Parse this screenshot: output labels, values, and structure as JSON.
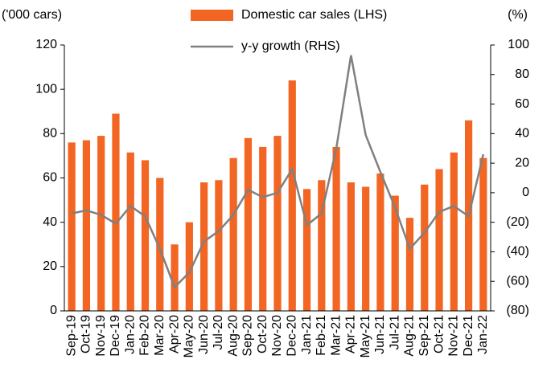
{
  "chart_data": {
    "type": "bar_line",
    "y_label": "('000 cars)",
    "y2_label": "(%)",
    "categories": [
      "Sep-19",
      "Oct-19",
      "Nov-19",
      "Dec-19",
      "Jan-20",
      "Feb-20",
      "Mar-20",
      "Apr-20",
      "May-20",
      "Jun-20",
      "Jul-20",
      "Aug-20",
      "Sep-20",
      "Oct-20",
      "Nov-20",
      "Dec-20",
      "Jan-21",
      "Feb-21",
      "Mar-21",
      "Apr-21",
      "May-21",
      "Jun-21",
      "Jul-21",
      "Aug-21",
      "Sep-21",
      "Oct-21",
      "Nov-21",
      "Dec-21",
      "Jan-22"
    ],
    "series": [
      {
        "name": "Domestic car sales (LHS)",
        "type": "bar",
        "color": "#f26522",
        "axis": "y",
        "values": [
          76,
          77,
          79,
          89,
          71.5,
          68,
          60,
          30,
          40,
          58,
          59,
          69,
          78,
          74,
          79,
          104,
          55,
          59,
          74,
          58,
          56,
          62,
          52,
          42,
          57,
          64,
          71.5,
          86,
          69
        ]
      },
      {
        "name": "y-y growth (RHS)",
        "type": "line",
        "color": "#808080",
        "axis": "y2",
        "values": [
          -14,
          -12,
          -15,
          -21,
          -9,
          -16,
          -38,
          -64,
          -54,
          -33,
          -26,
          -15,
          2,
          -3,
          0,
          16,
          -22,
          -14,
          30,
          93,
          39,
          14,
          -10,
          -38,
          -27,
          -13,
          -9,
          -16,
          26
        ]
      }
    ],
    "ylim": [
      0,
      120
    ],
    "yticks": [
      0,
      20,
      40,
      60,
      80,
      100,
      120
    ],
    "y2lim": [
      -80,
      100
    ],
    "y2ticks": [
      {
        "value": -80,
        "label": "(80)"
      },
      {
        "value": -60,
        "label": "(60)"
      },
      {
        "value": -40,
        "label": "(40)"
      },
      {
        "value": -20,
        "label": "(20)"
      },
      0,
      20,
      40,
      60,
      80,
      100
    ]
  }
}
